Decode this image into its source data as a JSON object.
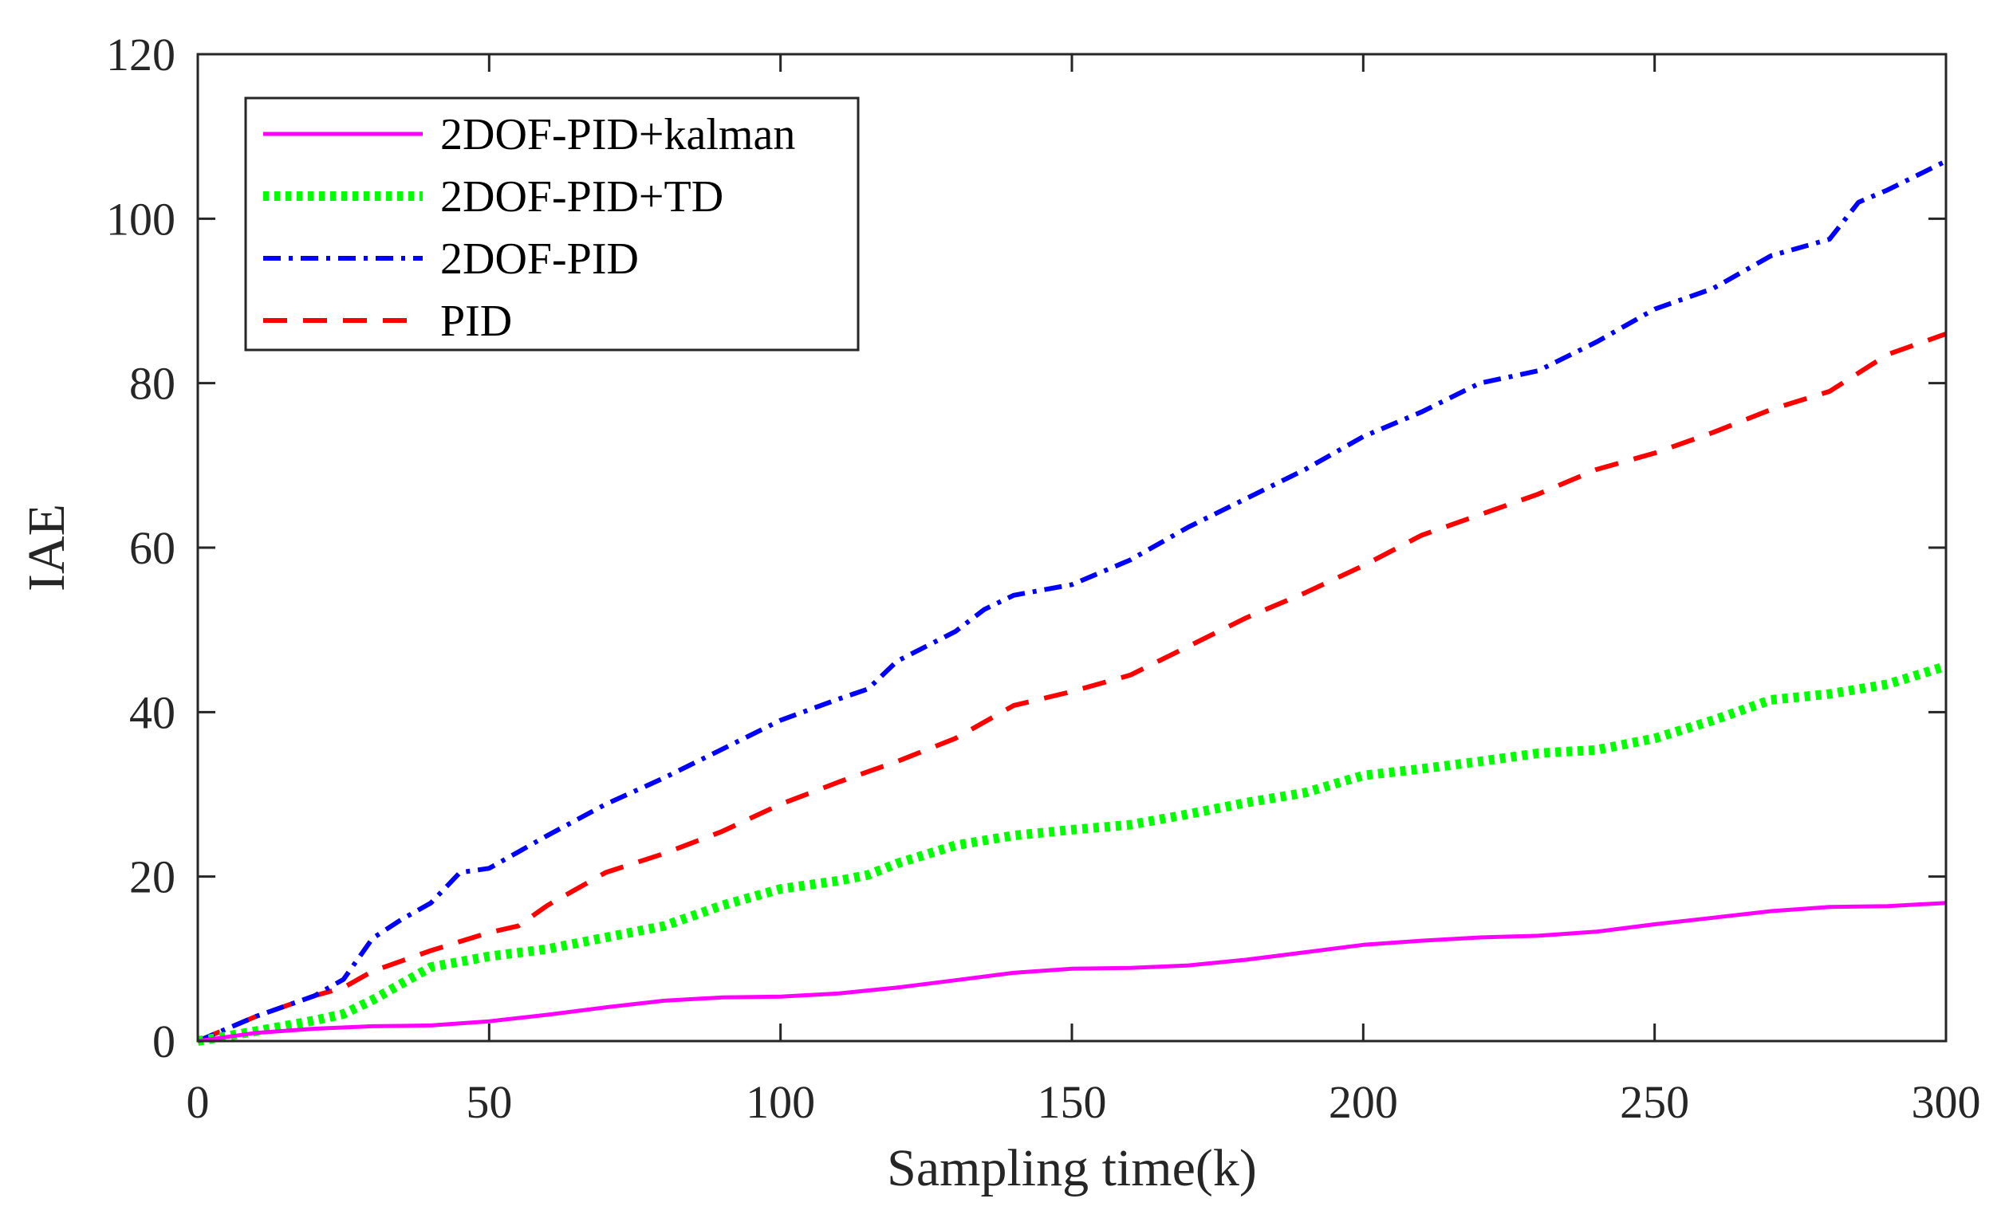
{
  "chart_data": {
    "type": "line",
    "title": "",
    "xlabel": "Sampling time(k)",
    "ylabel": "IAE",
    "xlim": [
      0,
      300
    ],
    "ylim": [
      0,
      120
    ],
    "xticks": [
      0,
      50,
      100,
      150,
      200,
      250,
      300
    ],
    "yticks": [
      0,
      20,
      40,
      60,
      80,
      100,
      120
    ],
    "xtick_labels": [
      "0",
      "50",
      "100",
      "150",
      "200",
      "250",
      "300"
    ],
    "ytick_labels": [
      "0",
      "20",
      "40",
      "60",
      "80",
      "100",
      "120"
    ],
    "grid": false,
    "legend_position": "top-left",
    "series": [
      {
        "name": "2DOF-PID+kalman",
        "color": "#ff00ff",
        "style": "solid",
        "x": [
          0,
          10,
          20,
          30,
          40,
          50,
          60,
          70,
          80,
          90,
          100,
          110,
          120,
          130,
          140,
          150,
          160,
          170,
          180,
          190,
          200,
          210,
          220,
          230,
          240,
          250,
          260,
          270,
          280,
          290,
          300
        ],
        "y": [
          0,
          1.0,
          1.5,
          1.8,
          1.9,
          2.4,
          3.2,
          4.1,
          4.9,
          5.3,
          5.4,
          5.8,
          6.5,
          7.4,
          8.3,
          8.8,
          8.9,
          9.2,
          9.9,
          10.8,
          11.7,
          12.2,
          12.6,
          12.8,
          13.3,
          14.2,
          15.0,
          15.8,
          16.3,
          16.4,
          16.8
        ]
      },
      {
        "name": "2DOF-PID+TD",
        "color": "#00ff00",
        "style": "dotted",
        "x": [
          0,
          10,
          20,
          25,
          30,
          35,
          40,
          50,
          60,
          70,
          80,
          90,
          100,
          110,
          115,
          120,
          130,
          140,
          150,
          160,
          170,
          180,
          190,
          200,
          210,
          220,
          230,
          240,
          250,
          260,
          270,
          280,
          290,
          300
        ],
        "y": [
          0,
          1.2,
          2.5,
          3.3,
          5.0,
          7.0,
          9.0,
          10.3,
          11.2,
          12.6,
          14.0,
          16.5,
          18.5,
          19.5,
          20.2,
          21.6,
          23.8,
          25.0,
          25.7,
          26.3,
          27.6,
          29.0,
          30.2,
          32.3,
          33.1,
          34.0,
          35.0,
          35.4,
          36.8,
          39.0,
          41.5,
          42.2,
          43.4,
          45.6
        ]
      },
      {
        "name": "2DOF-PID",
        "color": "#0000ff",
        "style": "dashdot",
        "x": [
          0,
          10,
          20,
          25,
          30,
          35,
          40,
          45,
          50,
          55,
          60,
          70,
          80,
          90,
          100,
          110,
          115,
          120,
          130,
          135,
          140,
          150,
          160,
          170,
          180,
          190,
          200,
          210,
          220,
          230,
          240,
          250,
          260,
          270,
          280,
          285,
          290,
          300
        ],
        "y": [
          0,
          3.0,
          5.5,
          7.5,
          12.5,
          14.8,
          16.8,
          20.5,
          21.0,
          23.0,
          25.0,
          28.8,
          32.0,
          35.5,
          39.0,
          41.6,
          42.8,
          46.2,
          49.8,
          52.5,
          54.2,
          55.5,
          58.5,
          62.5,
          66.0,
          69.5,
          73.5,
          76.5,
          80.0,
          81.5,
          85.0,
          89.0,
          91.5,
          95.5,
          97.5,
          102.0,
          103.5,
          107.0
        ]
      },
      {
        "name": "PID",
        "color": "#ff0000",
        "style": "dashed",
        "x": [
          0,
          10,
          20,
          25,
          30,
          40,
          50,
          55,
          60,
          70,
          80,
          90,
          100,
          110,
          120,
          130,
          140,
          150,
          160,
          170,
          180,
          190,
          200,
          210,
          220,
          230,
          240,
          250,
          260,
          270,
          280,
          290,
          300
        ],
        "y": [
          0,
          3.0,
          5.5,
          6.5,
          8.5,
          11.0,
          13.2,
          14.0,
          16.5,
          20.5,
          22.8,
          25.5,
          28.8,
          31.5,
          34.0,
          36.8,
          40.8,
          42.5,
          44.5,
          48.0,
          51.5,
          54.5,
          57.8,
          61.5,
          64.0,
          66.5,
          69.5,
          71.5,
          74.0,
          76.8,
          79.0,
          83.5,
          86.0
        ]
      }
    ]
  }
}
